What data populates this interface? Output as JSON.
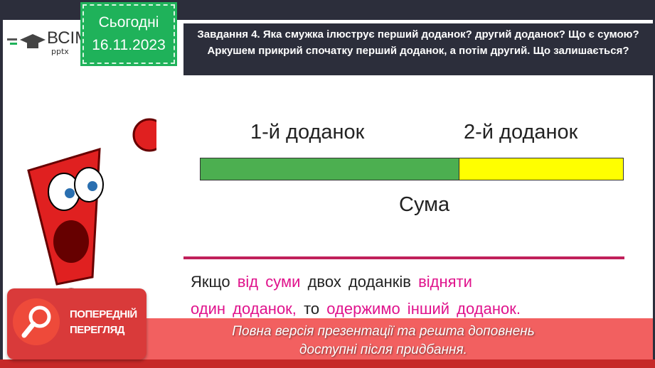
{
  "logo": {
    "text": "ВСІМ",
    "sub": "pptx"
  },
  "date": {
    "label": "Сьогодні",
    "value": "16.11.2023"
  },
  "task": {
    "text": "Завдання 4. Яка смужка ілюструє перший доданок? другий доданок? Що є сумою? Аркушем прикрий спочатку перший доданок, а потім другий. Що залишається?"
  },
  "diagram": {
    "first_label": "1-й доданок",
    "second_label": "2-й доданок",
    "sum_label": "Сума",
    "first_color": "#4caf50",
    "second_color": "#ffff00"
  },
  "rule": {
    "p1": "Якщо",
    "p2": "від суми",
    "p3": "двох доданків",
    "p4": "відняти",
    "p5": "один доданок,",
    "p6": "то",
    "p7": "одержимо інший доданок."
  },
  "preview": {
    "title_line1": "ПОПЕРЕДНІЙ",
    "title_line2": "ПЕРЕГЛЯД"
  },
  "banner": {
    "line1": "Повна версія презентації та решта доповнень",
    "line2": "доступні після придбання."
  }
}
